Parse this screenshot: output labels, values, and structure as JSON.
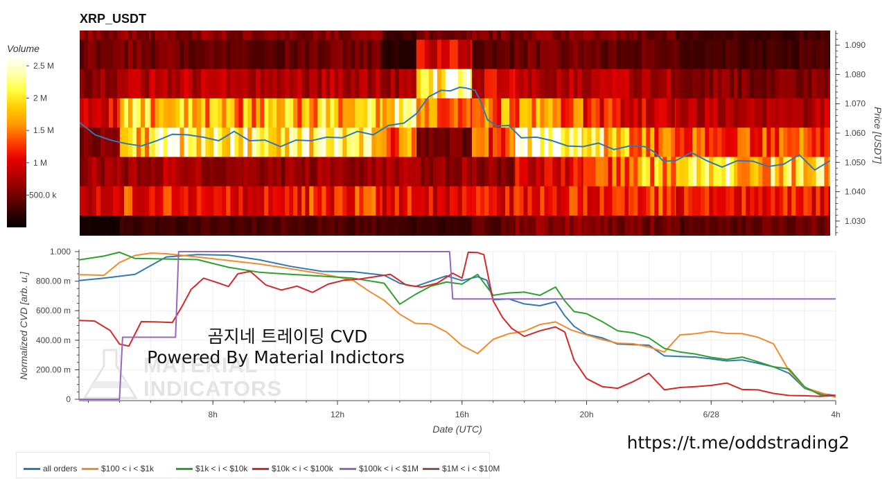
{
  "title": "XRP_USDT",
  "url": "https://t.me/oddstrading2",
  "overlay": {
    "line1": "곰지네 트레이딩 CVD",
    "line2": "Powered By Material Indictors"
  },
  "watermark": {
    "line1": "MATERIAL",
    "line2": "INDICATORS"
  },
  "colorbar": {
    "title": "Volume",
    "ticks": [
      {
        "label": "2.5 M",
        "value": 2500000
      },
      {
        "label": "2 M",
        "value": 2000000
      },
      {
        "label": "1.5 M",
        "value": 1500000
      },
      {
        "label": "1 M",
        "value": 1000000
      },
      {
        "label": "500.0 k",
        "value": 500000
      }
    ],
    "min": 0,
    "max": 2650000,
    "palette": [
      "#000000",
      "#3a0000",
      "#7a0000",
      "#b30000",
      "#e60000",
      "#ff4400",
      "#ff9900",
      "#ffcc00",
      "#ffff40",
      "#ffffb0",
      "#ffffff"
    ]
  },
  "chart_data": [
    {
      "type": "heatmap",
      "title": "XRP_USDT",
      "ylabel": "Price [USDT]",
      "ylim": [
        1.025,
        1.095
      ],
      "yticks": [
        "1.090",
        "1.080",
        "1.070",
        "1.060",
        "1.050",
        "1.040",
        "1.030"
      ],
      "yticks_values": [
        1.09,
        1.08,
        1.07,
        1.06,
        1.05,
        1.04,
        1.03
      ],
      "xlim_hours": [
        3.7,
        28.0
      ],
      "price_bins": [
        1.025,
        1.032,
        1.042,
        1.052,
        1.062,
        1.072,
        1.082,
        1.092,
        1.095
      ],
      "time_segments": [
        {
          "t": 3.7,
          "v": [
            0.1,
            0.9,
            0.7,
            0.55,
            1.0,
            0.65,
            0.5,
            0.6
          ]
        },
        {
          "t": 5.0,
          "v": [
            0.3,
            1.2,
            0.75,
            2.0,
            2.1,
            0.8,
            0.55,
            0.6
          ]
        },
        {
          "t": 6.0,
          "v": [
            0.3,
            1.1,
            0.8,
            2.2,
            1.7,
            0.85,
            0.5,
            0.55
          ]
        },
        {
          "t": 7.5,
          "v": [
            0.35,
            1.1,
            0.7,
            2.3,
            1.6,
            0.8,
            0.45,
            0.6
          ]
        },
        {
          "t": 9.0,
          "v": [
            0.4,
            1.1,
            0.65,
            2.2,
            1.7,
            0.75,
            0.45,
            0.55
          ]
        },
        {
          "t": 11.0,
          "v": [
            0.35,
            1.2,
            0.7,
            2.2,
            1.8,
            0.8,
            0.5,
            0.6
          ]
        },
        {
          "t": 13.5,
          "v": [
            0.3,
            1.1,
            0.75,
            1.5,
            2.0,
            0.7,
            0.2,
            0.3
          ]
        },
        {
          "t": 14.6,
          "v": [
            0.25,
            1.0,
            0.7,
            0.5,
            1.4,
            2.3,
            1.0,
            0.55
          ]
        },
        {
          "t": 16.4,
          "v": [
            0.4,
            1.1,
            0.6,
            1.3,
            1.5,
            0.95,
            0.4,
            0.55
          ]
        },
        {
          "t": 17.8,
          "v": [
            0.6,
            1.2,
            1.0,
            2.4,
            1.5,
            0.8,
            0.5,
            0.6
          ]
        },
        {
          "t": 20.0,
          "v": [
            0.55,
            1.25,
            1.3,
            2.0,
            1.1,
            0.8,
            0.45,
            0.55
          ]
        },
        {
          "t": 21.5,
          "v": [
            0.5,
            1.25,
            1.7,
            1.5,
            0.95,
            0.75,
            0.45,
            0.5
          ]
        },
        {
          "t": 23.0,
          "v": [
            0.4,
            1.2,
            2.0,
            1.3,
            0.8,
            0.6,
            0.35,
            0.3
          ]
        },
        {
          "t": 25.0,
          "v": [
            0.45,
            1.2,
            1.9,
            1.4,
            0.7,
            0.55,
            0.3,
            0.25
          ]
        },
        {
          "t": 27.0,
          "v": [
            0.5,
            1.15,
            2.0,
            1.35,
            0.8,
            0.6,
            0.35,
            0.3
          ]
        }
      ],
      "price_line": {
        "color": "#2f78b3",
        "t": [
          3.7,
          4.2,
          4.7,
          5.2,
          5.7,
          6.2,
          6.7,
          7.2,
          7.7,
          8.2,
          8.7,
          9.2,
          9.7,
          10.2,
          10.7,
          11.2,
          11.7,
          12.2,
          12.7,
          13.2,
          13.7,
          14.2,
          14.6,
          15.0,
          15.4,
          15.7,
          16.0,
          16.2,
          16.5,
          16.7,
          16.9,
          17.2,
          17.6,
          18.0,
          18.5,
          19.0,
          19.5,
          20.0,
          20.5,
          21.0,
          21.5,
          22.0,
          22.3,
          22.6,
          23.0,
          23.5,
          24.0,
          24.5,
          25.0,
          25.5,
          26.0,
          26.5,
          27.0,
          27.5,
          28.0
        ],
        "price": [
          1.063,
          1.06,
          1.057,
          1.057,
          1.055,
          1.058,
          1.059,
          1.06,
          1.058,
          1.058,
          1.06,
          1.058,
          1.057,
          1.056,
          1.057,
          1.058,
          1.058,
          1.059,
          1.06,
          1.06,
          1.062,
          1.064,
          1.066,
          1.073,
          1.074,
          1.075,
          1.075,
          1.076,
          1.074,
          1.071,
          1.064,
          1.063,
          1.062,
          1.059,
          1.058,
          1.058,
          1.055,
          1.056,
          1.056,
          1.055,
          1.055,
          1.056,
          1.053,
          1.051,
          1.05,
          1.054,
          1.05,
          1.049,
          1.05,
          1.051,
          1.048,
          1.05,
          1.052,
          1.048,
          1.05
        ]
      }
    },
    {
      "type": "line",
      "xlabel": "Date (UTC)",
      "ylabel": "Normalized CVD [arb. u.]",
      "ylim": [
        0,
        1.0
      ],
      "yticks": [
        "1.000",
        "800.00 m",
        "600.00 m",
        "400.00 m",
        "200.00 m",
        "0"
      ],
      "yticks_values": [
        1.0,
        0.8,
        0.6,
        0.4,
        0.2,
        0
      ],
      "xlim_hours": [
        3.7,
        28.0
      ],
      "xticks": [
        "8h",
        "12h",
        "16h",
        "20h",
        "6/28",
        "4h"
      ],
      "xticks_values": [
        8,
        12,
        16,
        20,
        24,
        28
      ],
      "series": [
        {
          "name": "all orders",
          "color": "#2f78b3",
          "t": [
            3.7,
            4.5,
            5.5,
            6.5,
            7.5,
            8.5,
            9.5,
            10.5,
            11.5,
            12.5,
            13.5,
            14.0,
            14.5,
            15.0,
            15.5,
            16.0,
            16.5,
            16.8,
            17.0,
            17.5,
            18.0,
            18.5,
            19.0,
            19.3,
            19.6,
            20.0,
            20.5,
            21.0,
            21.5,
            22.0,
            22.5,
            23.0,
            23.5,
            24.0,
            24.5,
            25.0,
            25.5,
            26.0,
            26.5,
            27.0,
            27.5,
            28.0
          ],
          "v": [
            0.81,
            0.82,
            0.84,
            0.97,
            0.98,
            0.97,
            0.95,
            0.9,
            0.86,
            0.87,
            0.84,
            0.78,
            0.77,
            0.8,
            0.83,
            0.81,
            0.83,
            0.8,
            0.68,
            0.68,
            0.64,
            0.64,
            0.66,
            0.56,
            0.5,
            0.44,
            0.41,
            0.38,
            0.37,
            0.36,
            0.3,
            0.29,
            0.28,
            0.28,
            0.26,
            0.26,
            0.25,
            0.22,
            0.17,
            0.08,
            0.04,
            0.02
          ]
        },
        {
          "name": "$100 < i < $1k",
          "color": "#f28a2b",
          "t": [
            3.7,
            4.5,
            5.0,
            5.5,
            6.0,
            6.5,
            7.5,
            8.5,
            9.5,
            10.5,
            11.5,
            12.5,
            13.0,
            13.5,
            14.0,
            14.5,
            15.0,
            15.5,
            16.0,
            16.5,
            17.0,
            17.5,
            18.0,
            18.5,
            19.0,
            19.5,
            20.0,
            20.5,
            21.0,
            21.5,
            22.0,
            22.5,
            23.0,
            23.5,
            24.0,
            24.5,
            25.0,
            25.5,
            26.0,
            26.5,
            27.0,
            27.5,
            28.0
          ],
          "v": [
            0.85,
            0.84,
            0.92,
            0.98,
            0.99,
            0.98,
            0.97,
            0.94,
            0.91,
            0.89,
            0.85,
            0.8,
            0.74,
            0.67,
            0.57,
            0.52,
            0.51,
            0.45,
            0.37,
            0.31,
            0.4,
            0.45,
            0.46,
            0.5,
            0.53,
            0.47,
            0.43,
            0.41,
            0.38,
            0.37,
            0.36,
            0.32,
            0.43,
            0.45,
            0.46,
            0.44,
            0.45,
            0.42,
            0.37,
            0.2,
            0.08,
            0.04,
            0.02
          ]
        },
        {
          "name": "$1k < i < $10k",
          "color": "#2ca02c",
          "t": [
            3.7,
            4.5,
            5.0,
            5.5,
            6.5,
            7.5,
            8.5,
            9.5,
            10.5,
            11.5,
            12.5,
            13.5,
            14.0,
            14.5,
            15.0,
            15.5,
            16.0,
            16.5,
            17.0,
            17.5,
            18.0,
            18.5,
            19.0,
            19.3,
            19.6,
            20.0,
            20.5,
            21.0,
            21.5,
            22.0,
            22.5,
            23.0,
            23.5,
            24.0,
            24.5,
            25.0,
            25.5,
            26.0,
            26.5,
            27.0,
            27.5,
            28.0
          ],
          "v": [
            0.95,
            0.97,
            0.99,
            0.96,
            0.95,
            0.94,
            0.9,
            0.86,
            0.84,
            0.84,
            0.82,
            0.78,
            0.65,
            0.71,
            0.76,
            0.8,
            0.78,
            0.84,
            0.71,
            0.72,
            0.72,
            0.71,
            0.76,
            0.66,
            0.6,
            0.58,
            0.52,
            0.47,
            0.45,
            0.41,
            0.35,
            0.32,
            0.3,
            0.29,
            0.27,
            0.28,
            0.26,
            0.22,
            0.2,
            0.09,
            0.03,
            0.02
          ]
        },
        {
          "name": "$10k < i < $100k",
          "color": "#d62728",
          "t": [
            3.7,
            4.2,
            4.7,
            5.0,
            5.3,
            5.7,
            6.2,
            6.7,
            7.0,
            7.3,
            7.7,
            8.2,
            8.5,
            8.8,
            9.2,
            9.7,
            10.2,
            10.7,
            11.2,
            11.7,
            12.2,
            12.7,
            13.2,
            13.7,
            14.2,
            14.7,
            15.2,
            15.7,
            16.0,
            16.2,
            16.5,
            16.7,
            17.0,
            17.3,
            17.6,
            18.0,
            18.5,
            19.0,
            19.3,
            19.6,
            20.0,
            20.5,
            21.0,
            21.5,
            22.0,
            22.5,
            23.0,
            23.5,
            24.0,
            24.5,
            25.0,
            25.5,
            26.0,
            26.5,
            27.0,
            27.5,
            28.0
          ],
          "v": [
            0.54,
            0.53,
            0.46,
            0.38,
            0.36,
            0.52,
            0.53,
            0.52,
            0.62,
            0.75,
            0.82,
            0.78,
            0.77,
            0.85,
            0.86,
            0.78,
            0.74,
            0.76,
            0.73,
            0.78,
            0.8,
            0.82,
            0.83,
            0.84,
            0.78,
            0.76,
            0.78,
            0.86,
            0.82,
            0.99,
            1.0,
            0.98,
            0.66,
            0.56,
            0.48,
            0.42,
            0.47,
            0.49,
            0.45,
            0.27,
            0.14,
            0.08,
            0.08,
            0.12,
            0.17,
            0.07,
            0.08,
            0.08,
            0.1,
            0.11,
            0.06,
            0.07,
            0.04,
            0.02,
            0.03,
            0.02,
            0.02
          ]
        },
        {
          "name": "$100k < i < $1M",
          "color": "#9467bd",
          "t": [
            3.7,
            4.5,
            5.0,
            5.1,
            5.5,
            6.0,
            6.5,
            6.8,
            6.9,
            7.2,
            8.0,
            10.0,
            12.0,
            14.0,
            15.6,
            15.7,
            16.0,
            18.0,
            20.0,
            22.0,
            24.0,
            26.0,
            28.0
          ],
          "v": [
            0.0,
            0.0,
            0.0,
            0.42,
            0.42,
            0.42,
            0.42,
            0.42,
            1.0,
            1.0,
            1.0,
            1.0,
            1.0,
            1.0,
            1.0,
            0.68,
            0.68,
            0.68,
            0.68,
            0.68,
            0.68,
            0.68,
            0.68
          ]
        },
        {
          "name": "$1M < i < $10M",
          "color": "#8c564b",
          "t": [],
          "v": []
        }
      ]
    }
  ]
}
